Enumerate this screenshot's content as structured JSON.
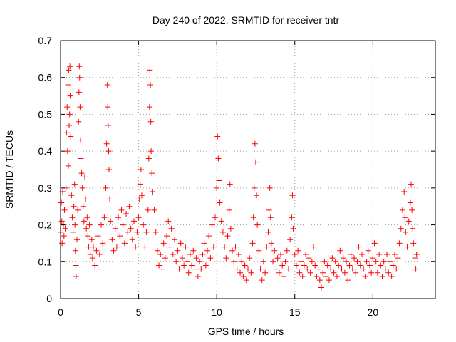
{
  "chart_data": {
    "type": "scatter",
    "title": "Day 240 of 2022, SRMTID for receiver tntr",
    "xlabel": "GPS time / hours",
    "ylabel": "SRMTID / TECUs",
    "xlim": [
      0,
      24
    ],
    "ylim": [
      0,
      0.7
    ],
    "xticks": [
      0,
      5,
      10,
      15,
      20
    ],
    "xtick_labels": [
      "0",
      "5",
      "10",
      "15",
      "20"
    ],
    "yticks": [
      0,
      0.1,
      0.2,
      0.3,
      0.4,
      0.5,
      0.6,
      0.7
    ],
    "ytick_labels": [
      "0",
      "0.1",
      "0.2",
      "0.3",
      "0.4",
      "0.5",
      "0.6",
      "0.7"
    ],
    "grid": true,
    "marker": "+",
    "marker_color": "#ff0000",
    "series": [
      {
        "name": "SRMTID",
        "points": [
          [
            0.02,
            0.18
          ],
          [
            0.05,
            0.26
          ],
          [
            0.08,
            0.21
          ],
          [
            0.1,
            0.15
          ],
          [
            0.14,
            0.29
          ],
          [
            0.18,
            0.2
          ],
          [
            0.22,
            0.17
          ],
          [
            0.25,
            0.24
          ],
          [
            0.3,
            0.19
          ],
          [
            0.35,
            0.3
          ],
          [
            0.38,
            0.45
          ],
          [
            0.42,
            0.52
          ],
          [
            0.45,
            0.4
          ],
          [
            0.48,
            0.58
          ],
          [
            0.5,
            0.36
          ],
          [
            0.52,
            0.62
          ],
          [
            0.55,
            0.47
          ],
          [
            0.58,
            0.5
          ],
          [
            0.6,
            0.63
          ],
          [
            0.62,
            0.55
          ],
          [
            0.65,
            0.44
          ],
          [
            0.7,
            0.28
          ],
          [
            0.75,
            0.22
          ],
          [
            0.8,
            0.18
          ],
          [
            0.85,
            0.25
          ],
          [
            0.9,
            0.31
          ],
          [
            0.92,
            0.2
          ],
          [
            0.95,
            0.13
          ],
          [
            0.98,
            0.09
          ],
          [
            1.0,
            0.06
          ],
          [
            1.05,
            0.16
          ],
          [
            1.1,
            0.24
          ],
          [
            1.15,
            0.48
          ],
          [
            1.18,
            0.56
          ],
          [
            1.2,
            0.63
          ],
          [
            1.22,
            0.6
          ],
          [
            1.25,
            0.52
          ],
          [
            1.28,
            0.43
          ],
          [
            1.3,
            0.38
          ],
          [
            1.35,
            0.34
          ],
          [
            1.4,
            0.3
          ],
          [
            1.45,
            0.25
          ],
          [
            1.5,
            0.21
          ],
          [
            1.55,
            0.33
          ],
          [
            1.6,
            0.27
          ],
          [
            1.65,
            0.19
          ],
          [
            1.7,
            0.22
          ],
          [
            1.75,
            0.17
          ],
          [
            1.8,
            0.14
          ],
          [
            1.85,
            0.2
          ],
          [
            1.9,
            0.12
          ],
          [
            2.0,
            0.16
          ],
          [
            2.05,
            0.11
          ],
          [
            2.1,
            0.14
          ],
          [
            2.2,
            0.09
          ],
          [
            2.3,
            0.13
          ],
          [
            2.4,
            0.17
          ],
          [
            2.5,
            0.12
          ],
          [
            2.6,
            0.2
          ],
          [
            2.7,
            0.15
          ],
          [
            2.8,
            0.22
          ],
          [
            2.9,
            0.3
          ],
          [
            2.95,
            0.42
          ],
          [
            3.0,
            0.58
          ],
          [
            3.02,
            0.52
          ],
          [
            3.05,
            0.47
          ],
          [
            3.08,
            0.4
          ],
          [
            3.1,
            0.35
          ],
          [
            3.15,
            0.27
          ],
          [
            3.2,
            0.21
          ],
          [
            3.3,
            0.16
          ],
          [
            3.4,
            0.13
          ],
          [
            3.5,
            0.19
          ],
          [
            3.6,
            0.14
          ],
          [
            3.7,
            0.22
          ],
          [
            3.8,
            0.17
          ],
          [
            3.9,
            0.24
          ],
          [
            4.0,
            0.2
          ],
          [
            4.1,
            0.15
          ],
          [
            4.2,
            0.23
          ],
          [
            4.3,
            0.18
          ],
          [
            4.4,
            0.25
          ],
          [
            4.5,
            0.19
          ],
          [
            4.6,
            0.16
          ],
          [
            4.7,
            0.21
          ],
          [
            4.8,
            0.14
          ],
          [
            4.9,
            0.18
          ],
          [
            5.0,
            0.22
          ],
          [
            5.05,
            0.27
          ],
          [
            5.1,
            0.31
          ],
          [
            5.15,
            0.35
          ],
          [
            5.2,
            0.28
          ],
          [
            5.3,
            0.2
          ],
          [
            5.4,
            0.14
          ],
          [
            5.5,
            0.18
          ],
          [
            5.6,
            0.24
          ],
          [
            5.65,
            0.38
          ],
          [
            5.7,
            0.52
          ],
          [
            5.72,
            0.62
          ],
          [
            5.75,
            0.58
          ],
          [
            5.78,
            0.48
          ],
          [
            5.8,
            0.4
          ],
          [
            5.85,
            0.34
          ],
          [
            5.9,
            0.29
          ],
          [
            6.0,
            0.24
          ],
          [
            6.1,
            0.18
          ],
          [
            6.2,
            0.13
          ],
          [
            6.3,
            0.09
          ],
          [
            6.4,
            0.12
          ],
          [
            6.5,
            0.08
          ],
          [
            6.6,
            0.15
          ],
          [
            6.7,
            0.11
          ],
          [
            6.8,
            0.17
          ],
          [
            6.9,
            0.21
          ],
          [
            7.0,
            0.14
          ],
          [
            7.1,
            0.19
          ],
          [
            7.2,
            0.12
          ],
          [
            7.3,
            0.16
          ],
          [
            7.4,
            0.1
          ],
          [
            7.5,
            0.13
          ],
          [
            7.6,
            0.08
          ],
          [
            7.7,
            0.15
          ],
          [
            7.8,
            0.11
          ],
          [
            7.9,
            0.09
          ],
          [
            8.0,
            0.14
          ],
          [
            8.1,
            0.1
          ],
          [
            8.2,
            0.07
          ],
          [
            8.3,
            0.12
          ],
          [
            8.4,
            0.09
          ],
          [
            8.5,
            0.13
          ],
          [
            8.6,
            0.08
          ],
          [
            8.7,
            0.11
          ],
          [
            8.8,
            0.06
          ],
          [
            8.9,
            0.1
          ],
          [
            9.0,
            0.08
          ],
          [
            9.1,
            0.12
          ],
          [
            9.2,
            0.15
          ],
          [
            9.3,
            0.09
          ],
          [
            9.4,
            0.13
          ],
          [
            9.5,
            0.17
          ],
          [
            9.6,
            0.11
          ],
          [
            9.7,
            0.2
          ],
          [
            9.8,
            0.14
          ],
          [
            9.9,
            0.22
          ],
          [
            10.0,
            0.3
          ],
          [
            10.05,
            0.44
          ],
          [
            10.1,
            0.38
          ],
          [
            10.15,
            0.32
          ],
          [
            10.2,
            0.26
          ],
          [
            10.3,
            0.21
          ],
          [
            10.4,
            0.18
          ],
          [
            10.5,
            0.14
          ],
          [
            10.6,
            0.11
          ],
          [
            10.7,
            0.17
          ],
          [
            10.8,
            0.24
          ],
          [
            10.85,
            0.31
          ],
          [
            10.9,
            0.19
          ],
          [
            11.0,
            0.13
          ],
          [
            11.1,
            0.1
          ],
          [
            11.2,
            0.14
          ],
          [
            11.3,
            0.08
          ],
          [
            11.4,
            0.12
          ],
          [
            11.5,
            0.07
          ],
          [
            11.6,
            0.1
          ],
          [
            11.7,
            0.06
          ],
          [
            11.8,
            0.09
          ],
          [
            11.9,
            0.05
          ],
          [
            12.0,
            0.08
          ],
          [
            12.1,
            0.11
          ],
          [
            12.2,
            0.07
          ],
          [
            12.3,
            0.15
          ],
          [
            12.35,
            0.22
          ],
          [
            12.4,
            0.3
          ],
          [
            12.45,
            0.42
          ],
          [
            12.5,
            0.37
          ],
          [
            12.55,
            0.28
          ],
          [
            12.6,
            0.2
          ],
          [
            12.7,
            0.13
          ],
          [
            12.8,
            0.08
          ],
          [
            12.9,
            0.05
          ],
          [
            13.0,
            0.1
          ],
          [
            13.1,
            0.07
          ],
          [
            13.2,
            0.14
          ],
          [
            13.3,
            0.18
          ],
          [
            13.35,
            0.24
          ],
          [
            13.4,
            0.3
          ],
          [
            13.45,
            0.22
          ],
          [
            13.5,
            0.15
          ],
          [
            13.6,
            0.1
          ],
          [
            13.7,
            0.13
          ],
          [
            13.8,
            0.08
          ],
          [
            13.9,
            0.11
          ],
          [
            14.0,
            0.07
          ],
          [
            14.1,
            0.12
          ],
          [
            14.2,
            0.09
          ],
          [
            14.3,
            0.06
          ],
          [
            14.4,
            0.1
          ],
          [
            14.5,
            0.13
          ],
          [
            14.6,
            0.08
          ],
          [
            14.7,
            0.16
          ],
          [
            14.8,
            0.22
          ],
          [
            14.85,
            0.28
          ],
          [
            14.9,
            0.19
          ],
          [
            15.0,
            0.12
          ],
          [
            15.1,
            0.09
          ],
          [
            15.2,
            0.13
          ],
          [
            15.3,
            0.07
          ],
          [
            15.4,
            0.1
          ],
          [
            15.5,
            0.06
          ],
          [
            15.6,
            0.09
          ],
          [
            15.7,
            0.12
          ],
          [
            15.8,
            0.08
          ],
          [
            15.9,
            0.11
          ],
          [
            16.0,
            0.07
          ],
          [
            16.1,
            0.1
          ],
          [
            16.2,
            0.14
          ],
          [
            16.3,
            0.09
          ],
          [
            16.4,
            0.06
          ],
          [
            16.5,
            0.08
          ],
          [
            16.6,
            0.05
          ],
          [
            16.7,
            0.03
          ],
          [
            16.8,
            0.07
          ],
          [
            16.9,
            0.1
          ],
          [
            17.0,
            0.06
          ],
          [
            17.1,
            0.09
          ],
          [
            17.2,
            0.05
          ],
          [
            17.3,
            0.08
          ],
          [
            17.4,
            0.11
          ],
          [
            17.5,
            0.07
          ],
          [
            17.6,
            0.1
          ],
          [
            17.7,
            0.06
          ],
          [
            17.8,
            0.09
          ],
          [
            17.9,
            0.13
          ],
          [
            18.0,
            0.08
          ],
          [
            18.1,
            0.11
          ],
          [
            18.2,
            0.07
          ],
          [
            18.3,
            0.1
          ],
          [
            18.4,
            0.05
          ],
          [
            18.5,
            0.09
          ],
          [
            18.6,
            0.12
          ],
          [
            18.7,
            0.08
          ],
          [
            18.8,
            0.11
          ],
          [
            18.9,
            0.07
          ],
          [
            19.0,
            0.1
          ],
          [
            19.1,
            0.14
          ],
          [
            19.2,
            0.09
          ],
          [
            19.3,
            0.12
          ],
          [
            19.4,
            0.08
          ],
          [
            19.5,
            0.06
          ],
          [
            19.6,
            0.1
          ],
          [
            19.7,
            0.13
          ],
          [
            19.8,
            0.09
          ],
          [
            19.9,
            0.07
          ],
          [
            20.0,
            0.11
          ],
          [
            20.1,
            0.15
          ],
          [
            20.2,
            0.1
          ],
          [
            20.3,
            0.07
          ],
          [
            20.4,
            0.12
          ],
          [
            20.5,
            0.09
          ],
          [
            20.6,
            0.06
          ],
          [
            20.7,
            0.1
          ],
          [
            20.8,
            0.08
          ],
          [
            20.9,
            0.12
          ],
          [
            21.0,
            0.07
          ],
          [
            21.1,
            0.1
          ],
          [
            21.2,
            0.06
          ],
          [
            21.3,
            0.09
          ],
          [
            21.4,
            0.12
          ],
          [
            21.5,
            0.08
          ],
          [
            21.6,
            0.11
          ],
          [
            21.7,
            0.15
          ],
          [
            21.8,
            0.19
          ],
          [
            21.9,
            0.24
          ],
          [
            22.0,
            0.29
          ],
          [
            22.05,
            0.22
          ],
          [
            22.1,
            0.18
          ],
          [
            22.2,
            0.14
          ],
          [
            22.3,
            0.21
          ],
          [
            22.4,
            0.26
          ],
          [
            22.45,
            0.31
          ],
          [
            22.5,
            0.24
          ],
          [
            22.55,
            0.19
          ],
          [
            22.6,
            0.15
          ],
          [
            22.7,
            0.11
          ],
          [
            22.75,
            0.08
          ],
          [
            22.8,
            0.12
          ]
        ]
      }
    ]
  }
}
